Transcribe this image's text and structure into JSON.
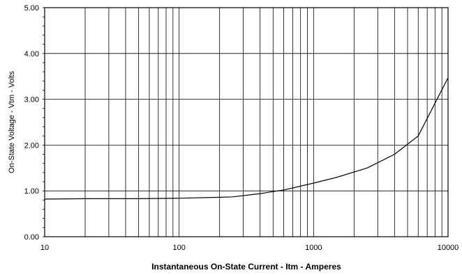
{
  "chart_data": {
    "type": "line",
    "xlabel": "Instantaneous On-State Current  -  Itm  -  Amperes",
    "ylabel": "On-State Voltage  -  Vtm  -  Volts",
    "xscale": "log",
    "xlim": [
      10,
      10000
    ],
    "ylim": [
      0,
      5
    ],
    "grid": true,
    "x_tick_labels": [
      "10",
      "100",
      "1000",
      "10000"
    ],
    "y_tick_labels": [
      "0.00",
      "1.00",
      "2.00",
      "3.00",
      "4.00",
      "5.00"
    ],
    "series": [
      {
        "x": [
          10,
          20,
          50,
          100,
          200,
          250,
          400,
          600,
          1000,
          1500,
          2500,
          4000,
          6000,
          10000
        ],
        "y": [
          0.82,
          0.83,
          0.83,
          0.84,
          0.86,
          0.87,
          0.94,
          1.02,
          1.17,
          1.3,
          1.5,
          1.8,
          2.2,
          3.47
        ]
      }
    ]
  }
}
